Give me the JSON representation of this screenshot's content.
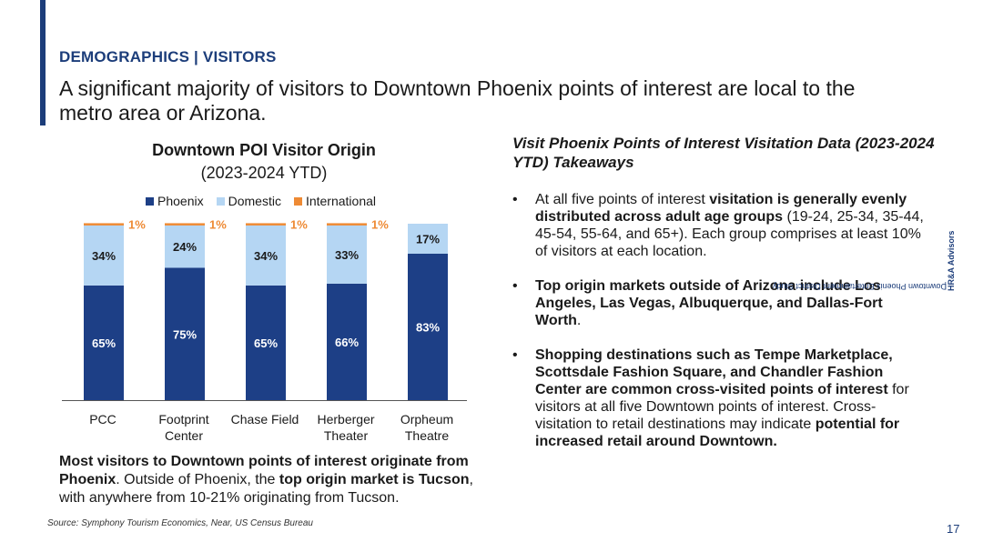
{
  "header": {
    "section_label": "DEMOGRAPHICS | VISITORS",
    "headline": "A significant majority of visitors to Downtown Phoenix points of interest are local to the metro area or Arizona."
  },
  "chart_data": {
    "type": "bar",
    "stacked": true,
    "title": "Downtown POI Visitor Origin",
    "subtitle": "(2023-2024 YTD)",
    "categories": [
      "PCC",
      "Footprint Center",
      "Chase Field",
      "Herberger Theater",
      "Orpheum Theatre"
    ],
    "category_lines": [
      [
        "PCC"
      ],
      [
        "Footprint",
        "Center"
      ],
      [
        "Chase Field"
      ],
      [
        "Herberger",
        "Theater"
      ],
      [
        "Orpheum",
        "Theatre"
      ]
    ],
    "series": [
      {
        "name": "Phoenix",
        "color": "#1d3f86",
        "values": [
          65,
          75,
          65,
          66,
          83
        ]
      },
      {
        "name": "Domestic",
        "color": "#b5d6f3",
        "values": [
          34,
          24,
          34,
          33,
          17
        ]
      },
      {
        "name": "International",
        "color": "#ee8a34",
        "values": [
          1,
          1,
          1,
          1,
          0
        ]
      }
    ],
    "data_labels": {
      "Phoenix": [
        "65%",
        "75%",
        "65%",
        "66%",
        "83%"
      ],
      "Domestic": [
        "34%",
        "24%",
        "34%",
        "33%",
        "17%"
      ],
      "International": [
        "1%",
        "1%",
        "1%",
        "1%",
        ""
      ]
    },
    "ylim": [
      0,
      100
    ],
    "legend_position": "top",
    "grid": false,
    "xlabel": "",
    "ylabel": ""
  },
  "summary": {
    "part1": "Most visitors to Downtown points of interest originate from Phoenix",
    "part2": ". Outside of Phoenix, the ",
    "part3": "top origin market is Tucson",
    "part4": ", with anywhere from 10-21% originating from Tucson."
  },
  "source": "Source: Symphony Tourism Economics, Near, US Census Bureau",
  "takeaways": {
    "title": "Visit Phoenix Points of Interest Visitation Data (2023-2024 YTD) Takeaways",
    "b1_plain1": "At all five points of interest ",
    "b1_bold": "visitation is generally evenly distributed across adult age groups",
    "b1_plain2": " (19-24, 25-34, 35-44, 45-54, 55-64, and 65+). Each group comprises at least 10% of visitors at each location.",
    "b2_bold": "Top origin markets outside of Arizona include Los Angeles, Las Vegas, Albuquerque, and Dallas-Fort Worth",
    "b2_plain": ".",
    "b3_bold1": "Shopping destinations such as Tempe Marketplace, Scottsdale Fashion Square, and Chandler Fashion Center are common cross-visited points of interest",
    "b3_plain": " for visitors at all five Downtown points of interest. Cross-visitation to retail destinations may indicate ",
    "b3_bold2": "potential for increased retail around Downtown."
  },
  "sidebar": {
    "study_label": "Downtown Phoenix Entertainment District Study",
    "separator": "|",
    "firm": "HR&A Advisors"
  },
  "page_number": "17"
}
